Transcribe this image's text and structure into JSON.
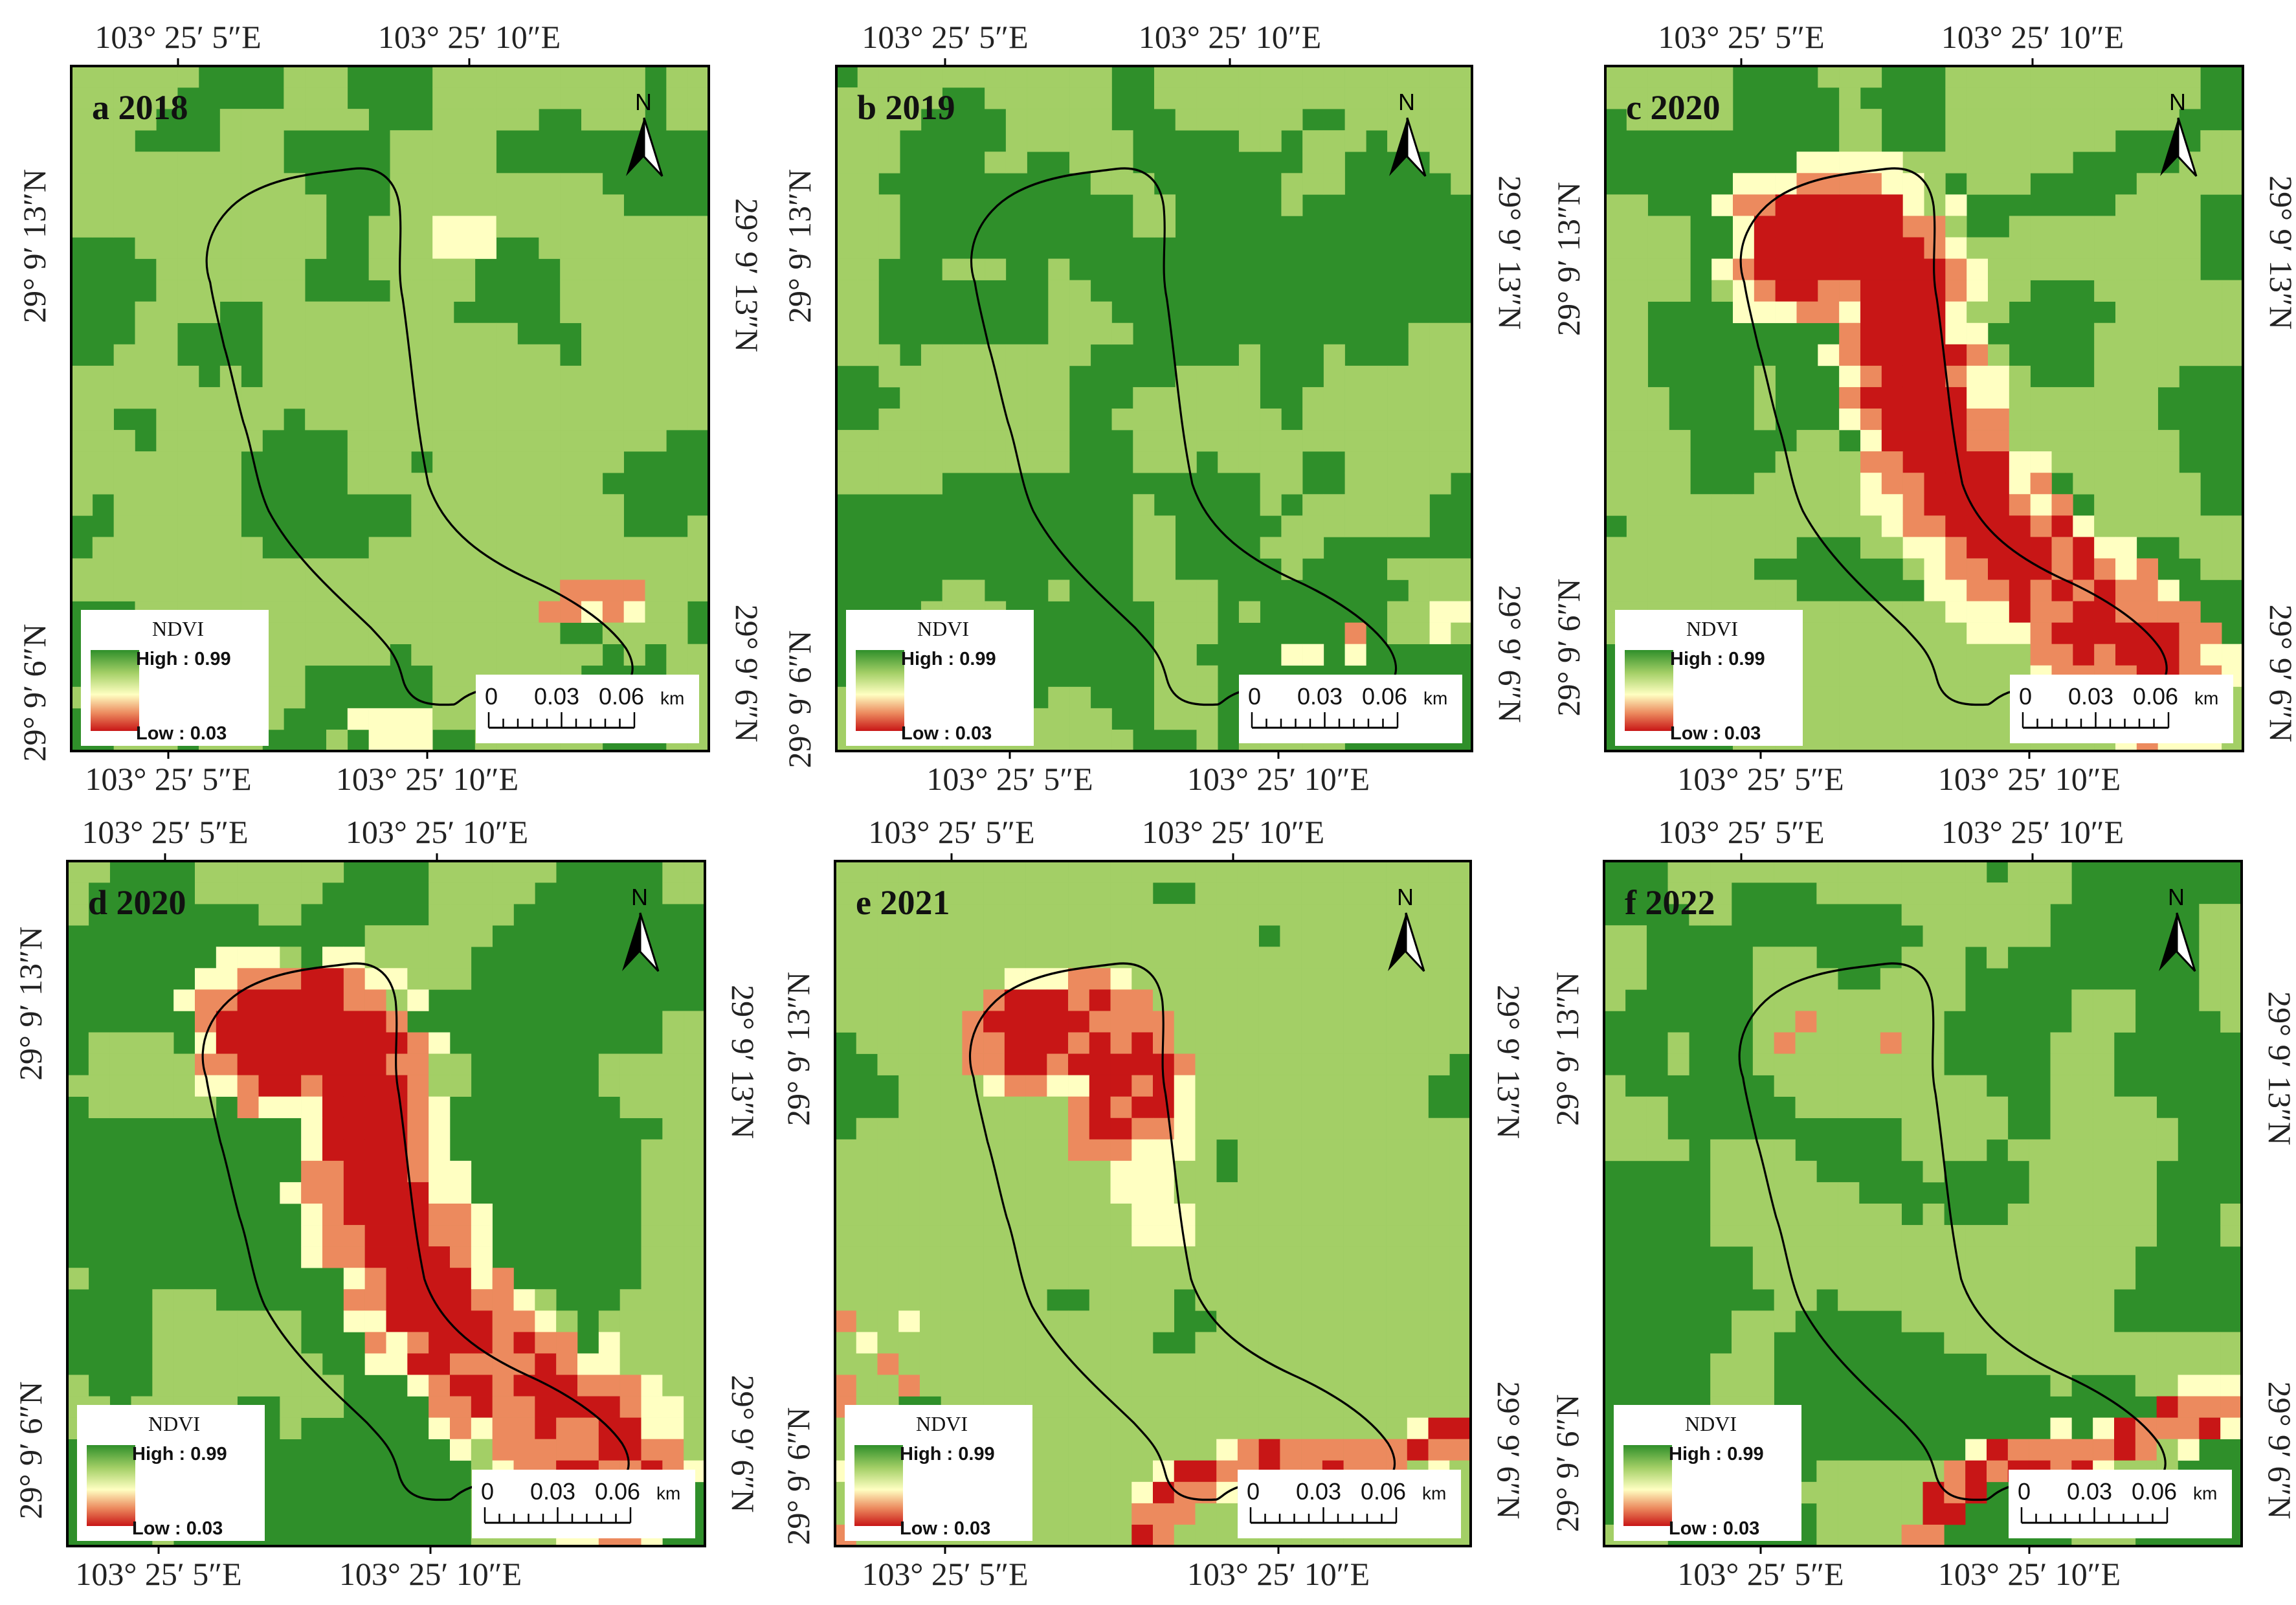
{
  "colors": {
    "dark_green": "#2f8f2a",
    "light_green": "#a3cf66",
    "cream": "#ffffc2",
    "salmon": "#ec8a5e",
    "red": "#c81616",
    "frame": "#000000"
  },
  "north_label": "N",
  "north_icon": "north-arrow-icon",
  "legend": {
    "title": "NDVI",
    "high": "High : 0.99",
    "low": "Low : 0.03"
  },
  "scalebar": {
    "labels": [
      "0",
      "0.03",
      "0.06"
    ],
    "unit": "km"
  },
  "coords": {
    "lon_a": "103°  25′ 5″E",
    "lon_b": "103°  25′ 10″E",
    "lat_a": "29°  9′ 13″N",
    "lat_b": "29°  9′ 6″N"
  },
  "panels": [
    {
      "label": "a 2018"
    },
    {
      "label": "b 2019"
    },
    {
      "label": "c 2020"
    },
    {
      "label": "d 2020"
    },
    {
      "label": "e 2021"
    },
    {
      "label": "f 2022"
    }
  ]
}
